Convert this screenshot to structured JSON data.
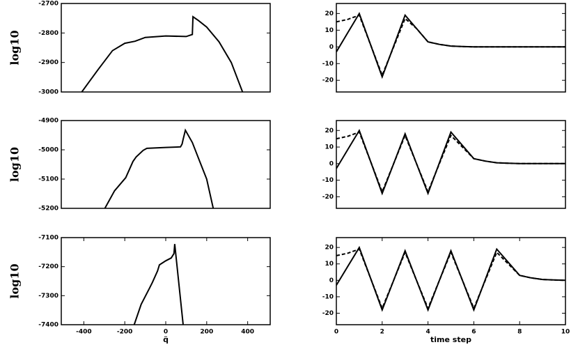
{
  "chart_data": [
    {
      "type": "line",
      "ylabel": "log10",
      "xlim": [
        -510,
        510
      ],
      "ylim": [
        -3000,
        -2700
      ],
      "yticks": [
        -2700,
        -2800,
        -2900,
        -3000
      ],
      "x": [
        -410,
        -330,
        -260,
        -200,
        -150,
        -100,
        0,
        100,
        130,
        133,
        160,
        200,
        260,
        320,
        375
      ],
      "values": [
        -3000,
        -2924,
        -2860,
        -2835,
        -2828,
        -2815,
        -2810,
        -2812,
        -2805,
        -2745,
        -2758,
        -2780,
        -2830,
        -2900,
        -3000
      ],
      "color": "#000000"
    },
    {
      "type": "line",
      "xlim": [
        0,
        10
      ],
      "ylim": [
        -27,
        26
      ],
      "yticks": [
        20,
        10,
        0,
        -10,
        -20
      ],
      "x": [
        0,
        0.5,
        1,
        1.5,
        2,
        2.5,
        3,
        3.5,
        4,
        4.5,
        5,
        5.5,
        6,
        6.5,
        7,
        7.5,
        8,
        8.5,
        9,
        9.5,
        10
      ],
      "series": [
        {
          "color": "#000000",
          "dash": false,
          "values": [
            -3,
            8.5,
            20,
            1,
            -18,
            0.5,
            19,
            11,
            3,
            1.5,
            0.5,
            0.2,
            0,
            0,
            0,
            0,
            0,
            0,
            0,
            0,
            0
          ]
        },
        {
          "color": "#000000",
          "dash": true,
          "values": [
            15,
            16.5,
            19,
            1,
            -17,
            0,
            17,
            11,
            3,
            1.5,
            0.5,
            0.2,
            0,
            0,
            0,
            0,
            0,
            0,
            0,
            0,
            0
          ]
        }
      ]
    },
    {
      "type": "line",
      "ylabel": "log10",
      "xlim": [
        -510,
        510
      ],
      "ylim": [
        -5200,
        -4900
      ],
      "yticks": [
        -4900,
        -5000,
        -5100,
        -5200
      ],
      "x": [
        -297,
        -250,
        -195,
        -160,
        -144,
        -110,
        -92,
        0,
        72,
        80,
        85,
        96,
        130,
        164,
        200,
        232
      ],
      "values": [
        -5200,
        -5140,
        -5095,
        -5040,
        -5024,
        -5002,
        -4995,
        -4992,
        -4990,
        -4980,
        -4964,
        -4933,
        -4975,
        -5036,
        -5100,
        -5200
      ],
      "color": "#000000"
    },
    {
      "type": "line",
      "xlim": [
        0,
        10
      ],
      "ylim": [
        -27,
        26
      ],
      "yticks": [
        20,
        10,
        0,
        -10,
        -20
      ],
      "x": [
        0,
        0.5,
        1,
        1.5,
        2,
        2.5,
        3,
        3.5,
        4,
        4.5,
        5,
        5.5,
        6,
        6.5,
        7,
        7.5,
        8,
        8.5,
        9,
        9.5,
        10
      ],
      "series": [
        {
          "color": "#000000",
          "dash": false,
          "values": [
            -3,
            8.5,
            20,
            1,
            -18,
            0,
            18,
            0,
            -18,
            0.5,
            19,
            11,
            3,
            1.5,
            0.5,
            0.2,
            0,
            0,
            0,
            0,
            0
          ]
        },
        {
          "color": "#000000",
          "dash": true,
          "values": [
            15,
            16.5,
            19,
            1,
            -17,
            0,
            17,
            0,
            -17,
            0,
            17,
            10,
            3,
            1.5,
            0.5,
            0.2,
            0,
            0,
            0,
            0,
            0
          ]
        }
      ]
    },
    {
      "type": "line",
      "ylabel": "log10",
      "xlabel": "q̃",
      "xlim": [
        -510,
        510
      ],
      "ylim": [
        -7400,
        -7100
      ],
      "yticks": [
        -7100,
        -7200,
        -7300,
        -7400
      ],
      "xticks": [
        -400,
        -200,
        0,
        200,
        400
      ],
      "x": [
        -154,
        -120,
        -80,
        -65,
        -40,
        -31,
        0,
        27,
        40,
        44,
        60,
        85
      ],
      "values": [
        -7400,
        -7330,
        -7275,
        -7254,
        -7215,
        -7194,
        -7180,
        -7170,
        -7155,
        -7122,
        -7230,
        -7400
      ],
      "color": "#000000"
    },
    {
      "type": "line",
      "xlabel": "time step",
      "xlim": [
        0,
        10
      ],
      "ylim": [
        -27,
        26
      ],
      "yticks": [
        20,
        10,
        0,
        -10,
        -20
      ],
      "xticks": [
        0,
        2,
        4,
        6,
        8,
        10
      ],
      "x": [
        0,
        0.5,
        1,
        1.5,
        2,
        2.5,
        3,
        3.5,
        4,
        4.5,
        5,
        5.5,
        6,
        6.5,
        7,
        7.5,
        8,
        8.5,
        9,
        9.5,
        10
      ],
      "series": [
        {
          "color": "#000000",
          "dash": false,
          "values": [
            -3,
            8.5,
            20,
            1,
            -18,
            0,
            18,
            0,
            -18,
            0,
            18,
            0,
            -18,
            0.5,
            19,
            11,
            3,
            1.5,
            0.5,
            0.2,
            0
          ]
        },
        {
          "color": "#000000",
          "dash": true,
          "values": [
            15,
            16.5,
            19,
            1,
            -17,
            0,
            17,
            0,
            -17,
            0,
            17,
            0,
            -17,
            0,
            17,
            10,
            3,
            1.5,
            0.5,
            0.2,
            0
          ]
        }
      ]
    }
  ]
}
